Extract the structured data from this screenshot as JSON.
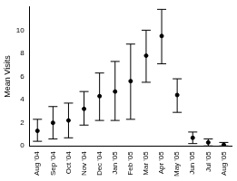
{
  "chart_data": {
    "type": "line",
    "y_label": "Mean Visits",
    "categories": [
      "Aug '04",
      "Sep '04",
      "Oct '04",
      "Nov '04",
      "Dec '04",
      "Jan '05",
      "Feb '05",
      "Mar '05",
      "Apr '05",
      "May '05",
      "Jun '05",
      "Jul '05",
      "Aug '05"
    ],
    "values": [
      1.3,
      2.0,
      2.2,
      3.2,
      4.3,
      4.7,
      5.6,
      7.8,
      9.5,
      4.4,
      0.7,
      0.3,
      0.1
    ],
    "lower": [
      0.4,
      0.6,
      0.7,
      1.8,
      2.2,
      2.2,
      2.3,
      5.5,
      7.1,
      2.9,
      0.2,
      0.0,
      0.0
    ],
    "upper": [
      2.3,
      3.4,
      3.7,
      4.7,
      6.3,
      7.3,
      8.8,
      10.0,
      11.8,
      5.8,
      1.2,
      0.6,
      0.3
    ],
    "color": "#000000",
    "marker": "circle",
    "line_style": "none",
    "ylim": [
      0,
      12
    ],
    "yticks": [
      0,
      2,
      4,
      6,
      8,
      10
    ],
    "grid": false
  }
}
